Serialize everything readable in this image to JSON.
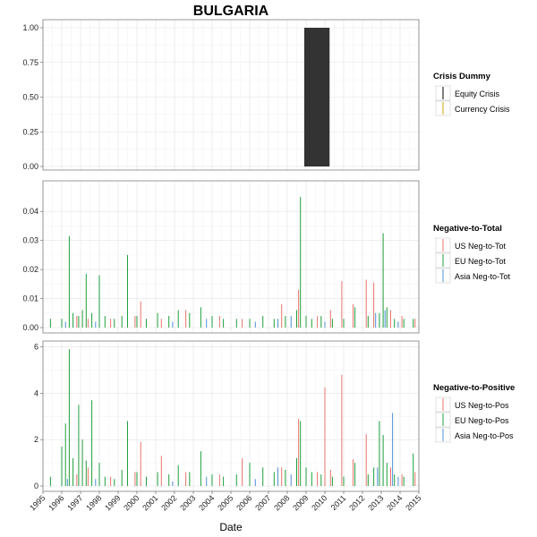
{
  "chart_data": {
    "type": "bar",
    "title": "BULGARIA",
    "xlabel": "Date",
    "xlim": [
      1995.0,
      2015.0
    ],
    "x_ticks": [
      "1995",
      "1996",
      "1997",
      "1998",
      "1999",
      "2000",
      "2001",
      "2002",
      "2003",
      "2004",
      "2005",
      "2006",
      "2007",
      "2008",
      "2009",
      "2010",
      "2011",
      "2012",
      "2013",
      "2014",
      "2015"
    ],
    "colors": {
      "equity": "#000000",
      "currency": "#C8A800",
      "us": "#E8746A",
      "eu": "#1E9E3C",
      "asia": "#4D8FD6",
      "crisis_fill": "#333333"
    },
    "panels": [
      {
        "key": "crisis",
        "legend_title": "Crisis Dummy",
        "ylim": [
          0,
          1.0
        ],
        "y_ticks": [
          "0.00",
          "0.25",
          "0.50",
          "0.75",
          "1.00"
        ],
        "y_tick_values": [
          0,
          0.25,
          0.5,
          0.75,
          1.0
        ],
        "legend": [
          {
            "name": "Equity Crisis",
            "color": "#000000"
          },
          {
            "name": "Currency Crisis",
            "color": "#C8A800"
          }
        ],
        "series": [
          {
            "name": "Equity Crisis",
            "type": "rect",
            "x0": 2008.9,
            "x1": 2010.25,
            "y": 1.0
          }
        ]
      },
      {
        "key": "negtot",
        "legend_title": "Negative-to-Total",
        "ylim": [
          0,
          0.045
        ],
        "y_ticks": [
          "0.00",
          "0.01",
          "0.02",
          "0.03",
          "0.04"
        ],
        "y_tick_values": [
          0,
          0.01,
          0.02,
          0.03,
          0.04
        ],
        "legend": [
          {
            "name": "US Neg-to-Tot",
            "color": "#E8746A"
          },
          {
            "name": "EU Neg-to-Tot",
            "color": "#1E9E3C"
          },
          {
            "name": "Asia Neg-to-Tot",
            "color": "#4D8FD6"
          }
        ],
        "series": [
          {
            "name": "EU Neg-to-Tot",
            "x": [
              1995.4,
              1996.0,
              1996.4,
              1996.6,
              1996.9,
              1997.1,
              1997.3,
              1997.6,
              1998.0,
              1998.3,
              1998.8,
              1999.2,
              1999.5,
              2000.0,
              2000.5,
              2001.1,
              2001.7,
              2002.2,
              2002.8,
              2003.4,
              2004.0,
              2004.6,
              2005.3,
              2006.0,
              2006.7,
              2007.3,
              2007.9,
              2008.5,
              2008.7,
              2009.0,
              2009.3,
              2009.8,
              2010.4,
              2011.0,
              2011.6,
              2012.3,
              2012.9,
              2013.1,
              2013.3,
              2013.7,
              2014.2,
              2014.7
            ],
            "y": [
              0.003,
              0.003,
              0.0315,
              0.005,
              0.004,
              0.006,
              0.0185,
              0.005,
              0.018,
              0.004,
              0.003,
              0.004,
              0.025,
              0.004,
              0.003,
              0.005,
              0.004,
              0.006,
              0.005,
              0.007,
              0.004,
              0.003,
              0.003,
              0.003,
              0.004,
              0.003,
              0.004,
              0.006,
              0.045,
              0.004,
              0.003,
              0.004,
              0.003,
              0.003,
              0.007,
              0.004,
              0.005,
              0.0325,
              0.007,
              0.003,
              0.003,
              0.003
            ]
          },
          {
            "name": "US Neg-to-Tot",
            "x": [
              1996.8,
              1997.4,
              1998.6,
              1999.9,
              2000.2,
              2001.3,
              2002.6,
              2004.4,
              2005.6,
              2007.7,
              2008.6,
              2009.6,
              2010.3,
              2010.9,
              2011.5,
              2012.2,
              2012.6,
              2013.5,
              2014.1,
              2014.8
            ],
            "y": [
              0.004,
              0.003,
              0.003,
              0.004,
              0.009,
              0.003,
              0.006,
              0.004,
              0.003,
              0.008,
              0.013,
              0.004,
              0.006,
              0.016,
              0.008,
              0.0165,
              0.0155,
              0.006,
              0.004,
              0.003
            ]
          },
          {
            "name": "Asia Neg-to-Tot",
            "x": [
              1996.2,
              1997.8,
              2001.9,
              2003.7,
              2006.3,
              2007.5,
              2008.2,
              2010.0,
              2012.7,
              2013.2,
              2013.9
            ],
            "y": [
              0.002,
              0.002,
              0.002,
              0.003,
              0.002,
              0.003,
              0.004,
              0.002,
              0.005,
              0.006,
              0.002
            ]
          }
        ]
      },
      {
        "key": "negpos",
        "legend_title": "Negative-to-Positive",
        "ylim": [
          0,
          6.1
        ],
        "y_ticks": [
          "0",
          "2",
          "4",
          "6"
        ],
        "y_tick_values": [
          0,
          2,
          4,
          6
        ],
        "legend": [
          {
            "name": "US Neg-to-Pos",
            "color": "#E8746A"
          },
          {
            "name": "EU Neg-to-Pos",
            "color": "#1E9E3C"
          },
          {
            "name": "Asia Neg-to-Pos",
            "color": "#4D8FD6"
          }
        ],
        "series": [
          {
            "name": "EU Neg-to-Pos",
            "x": [
              1995.4,
              1996.0,
              1996.2,
              1996.4,
              1996.6,
              1996.9,
              1997.1,
              1997.3,
              1997.6,
              1998.0,
              1998.3,
              1998.8,
              1999.2,
              1999.5,
              2000.0,
              2000.5,
              2001.1,
              2001.7,
              2002.2,
              2002.8,
              2003.4,
              2004.0,
              2004.6,
              2005.3,
              2006.0,
              2006.7,
              2007.3,
              2007.9,
              2008.5,
              2008.7,
              2009.0,
              2009.3,
              2009.8,
              2010.4,
              2011.0,
              2011.6,
              2012.3,
              2012.6,
              2012.9,
              2013.1,
              2013.3,
              2013.7,
              2014.2,
              2014.7
            ],
            "y": [
              0.4,
              1.7,
              2.7,
              5.9,
              1.2,
              3.5,
              2.0,
              1.1,
              3.7,
              1.0,
              0.4,
              0.3,
              0.7,
              2.8,
              0.6,
              0.4,
              0.6,
              0.5,
              0.9,
              0.6,
              1.5,
              0.5,
              0.4,
              0.5,
              1.0,
              0.8,
              0.6,
              0.7,
              1.2,
              2.8,
              0.8,
              0.6,
              0.5,
              0.4,
              0.4,
              1.0,
              0.5,
              0.8,
              2.8,
              2.2,
              1.0,
              0.5,
              0.4,
              1.4
            ]
          },
          {
            "name": "US Neg-to-Pos",
            "x": [
              1996.8,
              1997.4,
              1998.6,
              1999.9,
              2000.2,
              2001.3,
              2002.6,
              2004.4,
              2005.6,
              2007.7,
              2008.6,
              2009.6,
              2010.0,
              2010.3,
              2010.9,
              2011.5,
              2012.2,
              2013.5,
              2014.1,
              2014.8
            ],
            "y": [
              0.5,
              0.8,
              0.4,
              0.6,
              1.9,
              1.3,
              0.6,
              0.5,
              1.2,
              0.8,
              2.9,
              0.6,
              4.25,
              0.7,
              4.8,
              1.15,
              2.25,
              0.8,
              0.5,
              0.6
            ]
          },
          {
            "name": "Asia Neg-to-Pos",
            "x": [
              1996.3,
              1997.8,
              2001.9,
              2003.7,
              2006.3,
              2007.5,
              2008.2,
              2012.8,
              2013.6,
              2013.9
            ],
            "y": [
              0.3,
              0.3,
              0.2,
              0.4,
              0.3,
              0.8,
              0.5,
              0.8,
              3.15,
              0.4
            ]
          }
        ]
      }
    ]
  }
}
